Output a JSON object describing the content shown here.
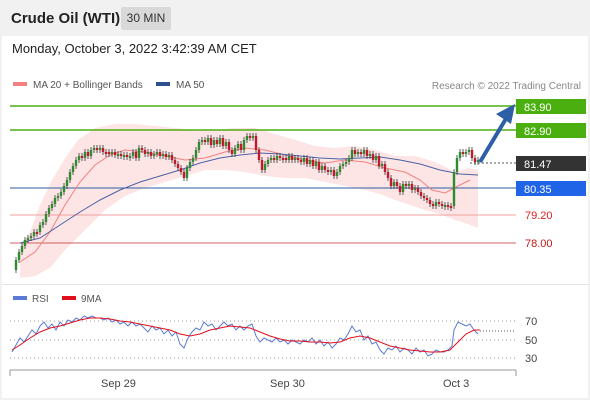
{
  "header": {
    "title": "Crude Oil (WTI)",
    "timeframe": "30 MIN"
  },
  "datetime": "Monday, October 3, 2022 3:42:39 AM CET",
  "legend": [
    {
      "label": "MA 20 + Bollinger Bands",
      "color": "#f28080"
    },
    {
      "label": "MA 50",
      "color": "#2f4f8f"
    }
  ],
  "credit": "Research © 2022 Trading Central",
  "colors": {
    "up": "#2e8b2e",
    "down": "#c0182c",
    "resistance": "#4caf10",
    "support_blue": "#2d5ea6",
    "support_red": "#e08080",
    "forecast_arrow": "#2d5ea6",
    "current": "#333333",
    "current_blue": "#1f63e6"
  },
  "levels": [
    {
      "value": "83.90",
      "type": "resistance"
    },
    {
      "value": "82.90",
      "type": "resistance"
    },
    {
      "value": "81.47",
      "type": "current"
    },
    {
      "value": "80.35",
      "type": "pivot"
    },
    {
      "value": "79.20",
      "type": "support"
    },
    {
      "value": "78.00",
      "type": "support"
    }
  ],
  "rsi": {
    "legend": [
      {
        "label": "RSI",
        "color": "#5a7ad6"
      },
      {
        "label": "9MA",
        "color": "#e0101a"
      }
    ],
    "levels": [
      "70",
      "50",
      "30"
    ]
  },
  "x_axis": [
    "Sep 29",
    "Sep 30",
    "Oct 3"
  ]
}
